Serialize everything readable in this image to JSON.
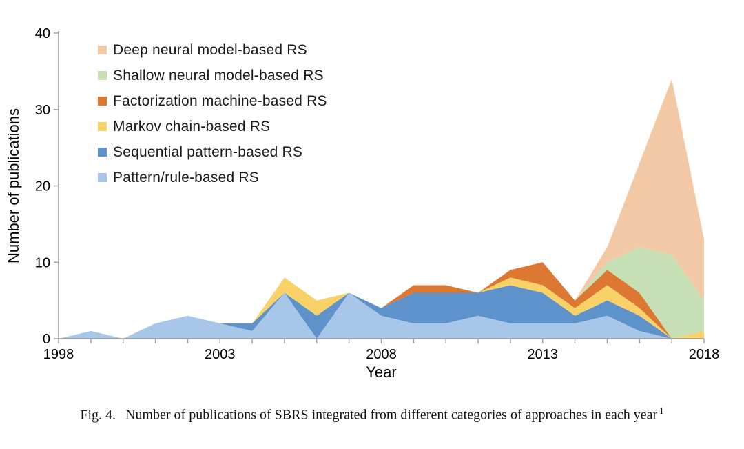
{
  "background": "#ffffff",
  "figure": {
    "caption_prefix": "Fig. 4.",
    "caption_text": "Number of publications of SBRS integrated from different categories of approaches in each year",
    "caption_superscript": "1"
  },
  "chart_data": {
    "type": "area",
    "stacked": true,
    "title": "",
    "xlabel": "Year",
    "ylabel": "Number of publications",
    "xlim": [
      1998,
      2018
    ],
    "ylim": [
      0,
      40
    ],
    "x_major_ticks": [
      1998,
      2003,
      2008,
      2013,
      2018
    ],
    "y_ticks": [
      0,
      10,
      20,
      30,
      40
    ],
    "grid": false,
    "legend_position": "top-left",
    "x": [
      1998,
      1999,
      2000,
      2001,
      2002,
      2003,
      2004,
      2005,
      2006,
      2007,
      2008,
      2009,
      2010,
      2011,
      2012,
      2013,
      2014,
      2015,
      2016,
      2017,
      2018
    ],
    "series": [
      {
        "name": "Pattern/rule-based RS",
        "color": "#a8c6e7",
        "values": [
          0,
          1,
          0,
          2,
          3,
          2,
          1,
          6,
          0,
          6,
          3,
          2,
          2,
          3,
          2,
          2,
          2,
          3,
          1,
          0,
          0
        ]
      },
      {
        "name": "Sequential pattern-based RS",
        "color": "#5e92cb",
        "values": [
          0,
          0,
          0,
          0,
          0,
          0,
          1,
          0,
          3,
          0,
          1,
          4,
          4,
          3,
          5,
          4,
          1,
          2,
          2,
          0,
          0
        ]
      },
      {
        "name": "Markov chain-based RS",
        "color": "#f8d269",
        "values": [
          0,
          0,
          0,
          0,
          0,
          0,
          0,
          2,
          2,
          0,
          0,
          0,
          0,
          0,
          1,
          1,
          1,
          2,
          1,
          0,
          1
        ]
      },
      {
        "name": "Factorization machine-based RS",
        "color": "#dd7832",
        "values": [
          0,
          0,
          0,
          0,
          0,
          0,
          0,
          0,
          0,
          0,
          0,
          1,
          1,
          0,
          1,
          3,
          1,
          2,
          2,
          0,
          0
        ]
      },
      {
        "name": "Shallow neural model-based RS",
        "color": "#c7dfb5",
        "values": [
          0,
          0,
          0,
          0,
          0,
          0,
          0,
          0,
          0,
          0,
          0,
          0,
          0,
          0,
          0,
          0,
          0,
          1,
          6,
          11,
          4
        ]
      },
      {
        "name": "Deep neural model-based RS",
        "color": "#f2c9a4",
        "values": [
          0,
          0,
          0,
          0,
          0,
          0,
          0,
          0,
          0,
          0,
          0,
          0,
          0,
          0,
          0,
          0,
          0,
          2,
          11,
          23,
          8
        ]
      }
    ],
    "axis_color": "#9b9b9b",
    "label_color": "#000000"
  }
}
